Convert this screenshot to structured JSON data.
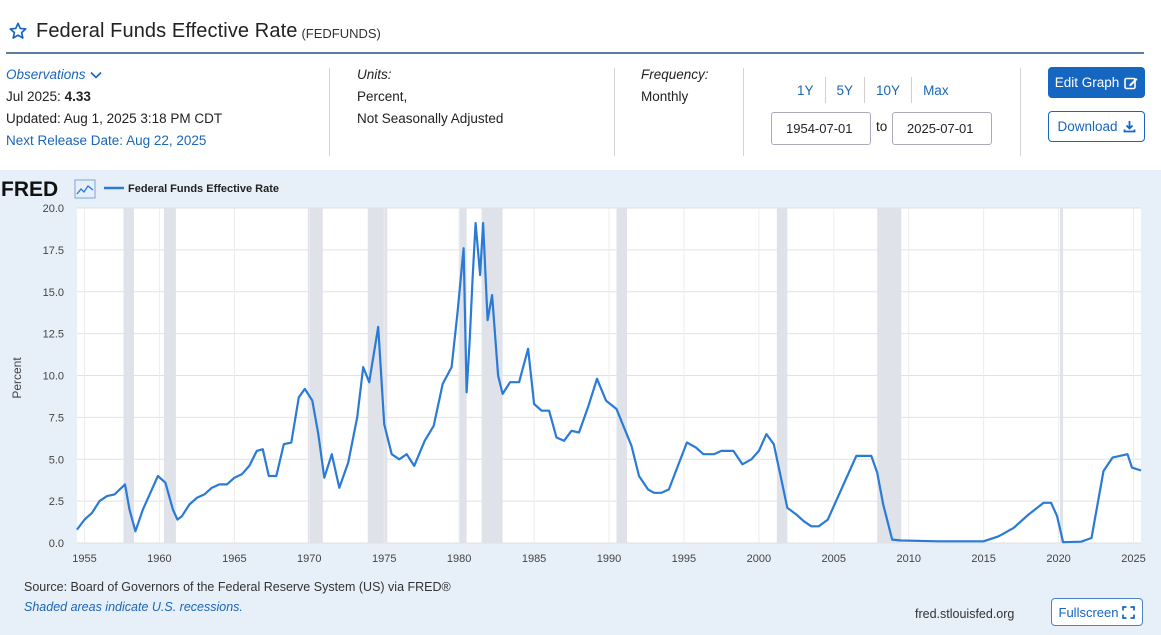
{
  "header": {
    "title": "Federal Funds Effective Rate",
    "series_id": "(FEDFUNDS)"
  },
  "observations": {
    "label": "Observations",
    "latest_label": "Jul 2025:",
    "latest_value": "4.33",
    "updated": "Updated: Aug 1, 2025 3:18 PM CDT",
    "next_release": "Next Release Date: Aug 22, 2025"
  },
  "units": {
    "label": "Units:",
    "line1": "Percent,",
    "line2": "Not Seasonally Adjusted"
  },
  "frequency": {
    "label": "Frequency:",
    "value": "Monthly"
  },
  "ranges": [
    "1Y",
    "5Y",
    "10Y",
    "Max"
  ],
  "date_range": {
    "start": "1954-07-01",
    "to": "to",
    "end": "2025-07-01"
  },
  "buttons": {
    "edit_graph": "Edit Graph",
    "download": "Download",
    "fullscreen": "Fullscreen"
  },
  "footer": {
    "source": "Source: Board of Governors of the Federal Reserve System (US) via FRED®",
    "shaded_note": "Shaded areas indicate U.S. recessions.",
    "url": "fred.stlouisfed.org"
  },
  "colors": {
    "accent": "#1466c0",
    "line": "#2a7ad6",
    "panel_bg": "#e7eff8",
    "recession": "#dfe2e8"
  },
  "chart_data": {
    "type": "line",
    "logo": "FRED",
    "ylabel": "Percent",
    "xlim": [
      1954.5,
      2025.5
    ],
    "ylim": [
      0,
      20
    ],
    "yticks": [
      0.0,
      2.5,
      5.0,
      7.5,
      10.0,
      12.5,
      15.0,
      17.5,
      20.0
    ],
    "xticks": [
      1955,
      1960,
      1965,
      1970,
      1975,
      1980,
      1985,
      1990,
      1995,
      2000,
      2005,
      2010,
      2015,
      2020,
      2025
    ],
    "grid": true,
    "legend_position": "top-left",
    "recessions": [
      [
        1957.6,
        1958.3
      ],
      [
        1960.3,
        1961.1
      ],
      [
        1969.9,
        1970.9
      ],
      [
        1973.9,
        1975.2
      ],
      [
        1980.0,
        1980.5
      ],
      [
        1981.5,
        1982.9
      ],
      [
        1990.5,
        1991.2
      ],
      [
        2001.2,
        2001.9
      ],
      [
        2007.9,
        2009.5
      ],
      [
        2020.1,
        2020.3
      ]
    ],
    "series": [
      {
        "name": "Federal Funds Effective Rate",
        "points": [
          [
            1954.5,
            0.8
          ],
          [
            1955.0,
            1.4
          ],
          [
            1955.5,
            1.8
          ],
          [
            1956.0,
            2.5
          ],
          [
            1956.5,
            2.8
          ],
          [
            1957.0,
            2.9
          ],
          [
            1957.7,
            3.5
          ],
          [
            1958.0,
            2.0
          ],
          [
            1958.4,
            0.7
          ],
          [
            1958.9,
            2.0
          ],
          [
            1959.5,
            3.2
          ],
          [
            1959.9,
            4.0
          ],
          [
            1960.4,
            3.6
          ],
          [
            1960.9,
            2.0
          ],
          [
            1961.2,
            1.4
          ],
          [
            1961.5,
            1.6
          ],
          [
            1962.0,
            2.3
          ],
          [
            1962.5,
            2.7
          ],
          [
            1963.0,
            2.9
          ],
          [
            1963.5,
            3.3
          ],
          [
            1964.0,
            3.5
          ],
          [
            1964.5,
            3.5
          ],
          [
            1965.0,
            3.9
          ],
          [
            1965.5,
            4.1
          ],
          [
            1966.0,
            4.6
          ],
          [
            1966.5,
            5.5
          ],
          [
            1966.9,
            5.6
          ],
          [
            1967.3,
            4.0
          ],
          [
            1967.8,
            4.0
          ],
          [
            1968.3,
            5.9
          ],
          [
            1968.8,
            6.0
          ],
          [
            1969.3,
            8.7
          ],
          [
            1969.7,
            9.2
          ],
          [
            1970.2,
            8.5
          ],
          [
            1970.6,
            6.5
          ],
          [
            1971.0,
            3.9
          ],
          [
            1971.5,
            5.3
          ],
          [
            1972.0,
            3.3
          ],
          [
            1972.6,
            4.8
          ],
          [
            1973.2,
            7.5
          ],
          [
            1973.6,
            10.5
          ],
          [
            1974.0,
            9.6
          ],
          [
            1974.6,
            12.9
          ],
          [
            1975.0,
            7.1
          ],
          [
            1975.5,
            5.3
          ],
          [
            1976.0,
            5.0
          ],
          [
            1976.5,
            5.3
          ],
          [
            1977.0,
            4.6
          ],
          [
            1977.7,
            6.1
          ],
          [
            1978.3,
            7.0
          ],
          [
            1978.9,
            9.5
          ],
          [
            1979.5,
            10.5
          ],
          [
            1979.9,
            13.8
          ],
          [
            1980.3,
            17.6
          ],
          [
            1980.5,
            9.0
          ],
          [
            1980.7,
            12.0
          ],
          [
            1980.9,
            15.8
          ],
          [
            1981.1,
            19.1
          ],
          [
            1981.4,
            16.0
          ],
          [
            1981.6,
            19.1
          ],
          [
            1981.9,
            13.3
          ],
          [
            1982.2,
            14.8
          ],
          [
            1982.6,
            10.0
          ],
          [
            1982.9,
            8.9
          ],
          [
            1983.4,
            9.6
          ],
          [
            1984.0,
            9.6
          ],
          [
            1984.6,
            11.6
          ],
          [
            1985.0,
            8.3
          ],
          [
            1985.5,
            7.9
          ],
          [
            1986.0,
            7.9
          ],
          [
            1986.5,
            6.3
          ],
          [
            1987.0,
            6.1
          ],
          [
            1987.5,
            6.7
          ],
          [
            1988.0,
            6.6
          ],
          [
            1988.6,
            8.1
          ],
          [
            1989.2,
            9.8
          ],
          [
            1989.8,
            8.5
          ],
          [
            1990.5,
            8.0
          ],
          [
            1991.0,
            6.9
          ],
          [
            1991.5,
            5.8
          ],
          [
            1992.0,
            4.0
          ],
          [
            1992.6,
            3.2
          ],
          [
            1993.0,
            3.0
          ],
          [
            1993.5,
            3.0
          ],
          [
            1994.0,
            3.2
          ],
          [
            1994.6,
            4.6
          ],
          [
            1995.2,
            6.0
          ],
          [
            1995.8,
            5.7
          ],
          [
            1996.3,
            5.3
          ],
          [
            1997.0,
            5.3
          ],
          [
            1997.5,
            5.5
          ],
          [
            1998.3,
            5.5
          ],
          [
            1998.9,
            4.7
          ],
          [
            1999.5,
            5.0
          ],
          [
            2000.0,
            5.5
          ],
          [
            2000.5,
            6.5
          ],
          [
            2001.0,
            5.9
          ],
          [
            2001.5,
            3.8
          ],
          [
            2001.9,
            2.1
          ],
          [
            2002.5,
            1.7
          ],
          [
            2003.0,
            1.3
          ],
          [
            2003.5,
            1.0
          ],
          [
            2004.0,
            1.0
          ],
          [
            2004.6,
            1.4
          ],
          [
            2005.3,
            2.8
          ],
          [
            2005.9,
            4.0
          ],
          [
            2006.5,
            5.2
          ],
          [
            2007.5,
            5.2
          ],
          [
            2007.9,
            4.2
          ],
          [
            2008.3,
            2.3
          ],
          [
            2008.9,
            0.2
          ],
          [
            2009.5,
            0.15
          ],
          [
            2012.0,
            0.1
          ],
          [
            2015.0,
            0.1
          ],
          [
            2016.0,
            0.4
          ],
          [
            2017.0,
            0.9
          ],
          [
            2018.0,
            1.7
          ],
          [
            2019.0,
            2.4
          ],
          [
            2019.5,
            2.4
          ],
          [
            2019.9,
            1.6
          ],
          [
            2020.3,
            0.05
          ],
          [
            2021.5,
            0.08
          ],
          [
            2022.2,
            0.3
          ],
          [
            2022.6,
            2.3
          ],
          [
            2023.0,
            4.3
          ],
          [
            2023.6,
            5.1
          ],
          [
            2024.6,
            5.3
          ],
          [
            2024.9,
            4.5
          ],
          [
            2025.5,
            4.33
          ]
        ]
      }
    ]
  }
}
